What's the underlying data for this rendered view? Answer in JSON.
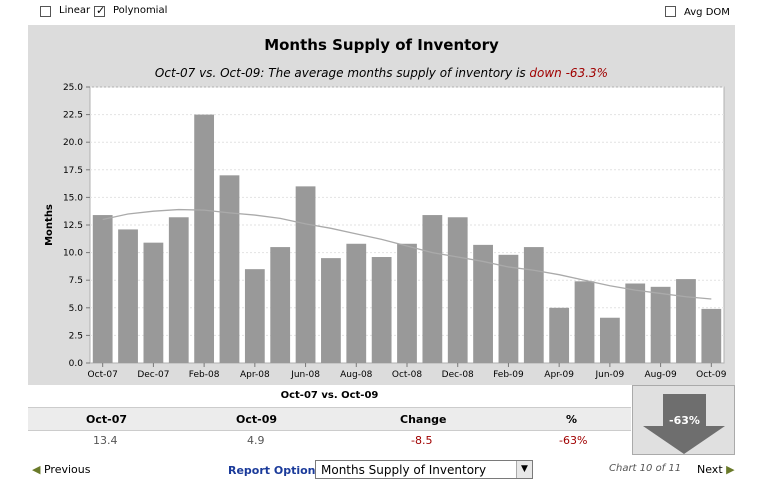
{
  "toggles": {
    "linear": {
      "label": "Linear",
      "checked": false
    },
    "polynomial": {
      "label": "Polynomial",
      "checked": true
    },
    "avg_dom": {
      "label": "Avg DOM",
      "checked": false
    }
  },
  "summary": {
    "heading": "Oct-07 vs. Oct-09",
    "columns": [
      "Oct-07",
      "Oct-09",
      "Change",
      "%"
    ],
    "values": [
      "13.4",
      "4.9",
      "-8.5",
      "-63%"
    ],
    "change_color": "#a00000",
    "badge": "-63%"
  },
  "footer": {
    "previous_label": "Previous",
    "report_options_label": "Report Options",
    "report_select_value": "Months Supply of Inventory",
    "chart_count": "Chart 10 of 11",
    "next_label": "Next"
  },
  "chart_data": {
    "type": "bar",
    "title": "Months Supply of Inventory",
    "subtitle_prefix": "Oct-07 vs. Oct-09: The average months supply of inventory is ",
    "subtitle_highlight": "down -63.3%",
    "ylabel": "Months",
    "xlabel": "",
    "ylim": [
      0,
      25
    ],
    "yticks": [
      "0.0",
      "2.5",
      "5.0",
      "7.5",
      "10.0",
      "12.5",
      "15.0",
      "17.5",
      "20.0",
      "22.5",
      "25.0"
    ],
    "grid": true,
    "categories": [
      "Oct-07",
      "Nov-07",
      "Dec-07",
      "Jan-08",
      "Feb-08",
      "Mar-08",
      "Apr-08",
      "May-08",
      "Jun-08",
      "Jul-08",
      "Aug-08",
      "Sep-08",
      "Oct-08",
      "Nov-08",
      "Dec-08",
      "Jan-09",
      "Feb-09",
      "Mar-09",
      "Apr-09",
      "May-09",
      "Jun-09",
      "Jul-09",
      "Aug-09",
      "Sep-09",
      "Oct-09"
    ],
    "xtick_labels": [
      "Oct-07",
      "Dec-07",
      "Feb-08",
      "Apr-08",
      "Jun-08",
      "Aug-08",
      "Oct-08",
      "Dec-08",
      "Feb-09",
      "Apr-09",
      "Jun-09",
      "Aug-09",
      "Oct-09"
    ],
    "values": [
      13.4,
      12.1,
      10.9,
      13.2,
      22.5,
      17.0,
      8.5,
      10.5,
      16.0,
      9.5,
      10.8,
      9.6,
      10.8,
      13.4,
      13.2,
      10.7,
      9.8,
      10.5,
      5.0,
      7.4,
      4.1,
      7.2,
      6.9,
      7.6,
      4.9
    ],
    "trend": {
      "name": "Polynomial",
      "values": [
        13.0,
        13.5,
        13.75,
        13.9,
        13.85,
        13.6,
        13.4,
        13.1,
        12.6,
        12.2,
        11.7,
        11.2,
        10.6,
        10.0,
        9.6,
        9.2,
        8.7,
        8.4,
        8.0,
        7.5,
        7.0,
        6.6,
        6.3,
        6.0,
        5.8
      ]
    },
    "colors": {
      "bar": "#999999",
      "trend": "#aaaaaa",
      "highlight": "#a00000"
    }
  }
}
